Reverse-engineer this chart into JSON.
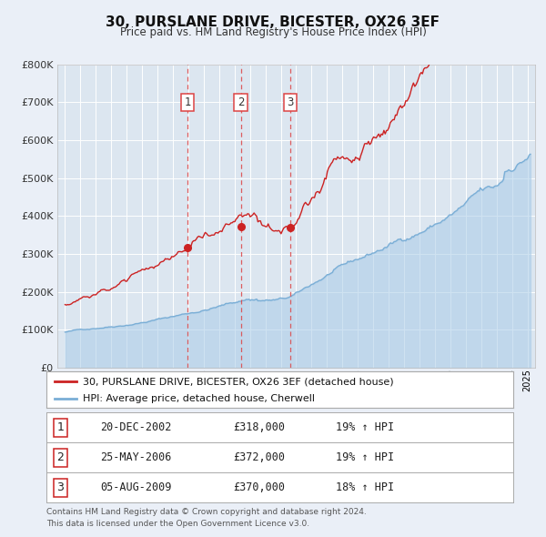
{
  "title": "30, PURSLANE DRIVE, BICESTER, OX26 3EF",
  "subtitle": "Price paid vs. HM Land Registry's House Price Index (HPI)",
  "bg_color": "#eaeff7",
  "plot_bg_color": "#dce6f0",
  "grid_color": "#ffffff",
  "hpi_color": "#7aaed6",
  "hpi_fill_color": "#aacce8",
  "price_color": "#cc2222",
  "marker_color": "#cc2222",
  "sale_dates": [
    2002.97,
    2006.4,
    2009.59
  ],
  "sale_prices": [
    318000,
    372000,
    370000
  ],
  "sale_labels": [
    "1",
    "2",
    "3"
  ],
  "vline_color": "#dd4444",
  "ylim_max": 800000,
  "ylim_min": 0,
  "xlim_min": 1994.5,
  "xlim_max": 2025.5,
  "legend_line1": "30, PURSLANE DRIVE, BICESTER, OX26 3EF (detached house)",
  "legend_line2": "HPI: Average price, detached house, Cherwell",
  "table_rows": [
    [
      "1",
      "20-DEC-2002",
      "£318,000",
      "19% ↑ HPI"
    ],
    [
      "2",
      "25-MAY-2006",
      "£372,000",
      "19% ↑ HPI"
    ],
    [
      "3",
      "05-AUG-2009",
      "£370,000",
      "18% ↑ HPI"
    ]
  ],
  "footnote1": "Contains HM Land Registry data © Crown copyright and database right 2024.",
  "footnote2": "This data is licensed under the Open Government Licence v3.0."
}
